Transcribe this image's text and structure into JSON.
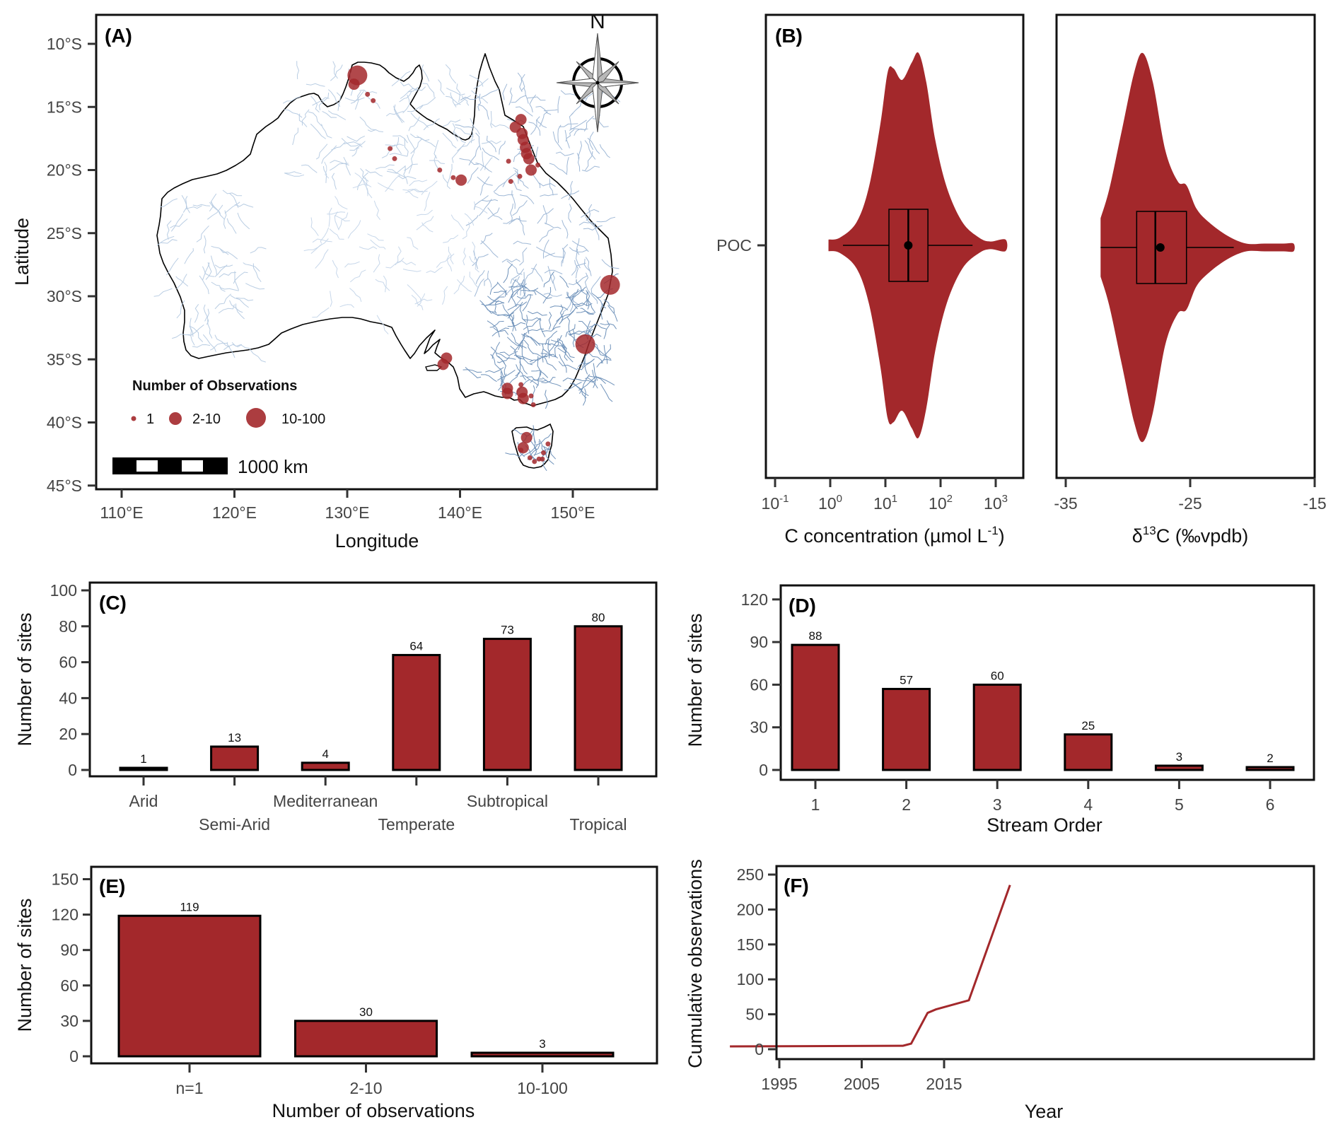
{
  "colors": {
    "bar_fill": "#a3282b",
    "point_fill": "#a3282b",
    "river": "#9fb8d6",
    "coast": "#000000",
    "line": "#a3282b"
  },
  "chart_data": [
    {
      "id": "A",
      "type": "scatter",
      "panel_label": "(A)",
      "title": "",
      "xlabel": "Longitude",
      "ylabel": "Latitude",
      "x_ticks": [
        "110°E",
        "120°E",
        "130°E",
        "140°E",
        "150°E"
      ],
      "x_tick_values": [
        110,
        120,
        130,
        140,
        150
      ],
      "y_ticks": [
        "10°S",
        "15°S",
        "20°S",
        "25°S",
        "30°S",
        "35°S",
        "40°S",
        "45°S"
      ],
      "y_tick_values": [
        -10,
        -15,
        -20,
        -25,
        -30,
        -35,
        -40,
        -45
      ],
      "xlim": [
        108,
        156
      ],
      "ylim": [
        -46,
        -8
      ],
      "north_arrow_label": "N",
      "scale_bar_label": "1000 km",
      "legend": {
        "title": "Number of Observations",
        "entries": [
          {
            "label": "1",
            "size_class": "small"
          },
          {
            "label": "2-10",
            "size_class": "medium"
          },
          {
            "label": "10-100",
            "size_class": "large"
          }
        ],
        "placement": "bottom-left"
      },
      "points": [
        {
          "lon": 130.9,
          "lat": -12.5,
          "size_class": "large"
        },
        {
          "lon": 130.6,
          "lat": -13.2,
          "size_class": "medium"
        },
        {
          "lon": 131.8,
          "lat": -14.0,
          "size_class": "small"
        },
        {
          "lon": 132.3,
          "lat": -14.5,
          "size_class": "small"
        },
        {
          "lon": 133.8,
          "lat": -18.3,
          "size_class": "small"
        },
        {
          "lon": 134.2,
          "lat": -19.1,
          "size_class": "small"
        },
        {
          "lon": 138.2,
          "lat": -20.0,
          "size_class": "small"
        },
        {
          "lon": 139.4,
          "lat": -20.6,
          "size_class": "small"
        },
        {
          "lon": 140.1,
          "lat": -20.8,
          "size_class": "medium"
        },
        {
          "lon": 145.4,
          "lat": -16.0,
          "size_class": "medium"
        },
        {
          "lon": 144.9,
          "lat": -16.6,
          "size_class": "medium"
        },
        {
          "lon": 145.5,
          "lat": -17.1,
          "size_class": "medium"
        },
        {
          "lon": 145.6,
          "lat": -17.6,
          "size_class": "medium"
        },
        {
          "lon": 145.8,
          "lat": -18.2,
          "size_class": "medium"
        },
        {
          "lon": 145.9,
          "lat": -18.7,
          "size_class": "medium"
        },
        {
          "lon": 146.1,
          "lat": -19.1,
          "size_class": "medium"
        },
        {
          "lon": 146.3,
          "lat": -20.0,
          "size_class": "medium"
        },
        {
          "lon": 144.3,
          "lat": -19.3,
          "size_class": "small"
        },
        {
          "lon": 144.5,
          "lat": -20.9,
          "size_class": "small"
        },
        {
          "lon": 145.3,
          "lat": -20.5,
          "size_class": "small"
        },
        {
          "lon": 146.9,
          "lat": -19.6,
          "size_class": "small"
        },
        {
          "lon": 153.3,
          "lat": -29.1,
          "size_class": "large"
        },
        {
          "lon": 151.1,
          "lat": -33.8,
          "size_class": "large"
        },
        {
          "lon": 138.8,
          "lat": -34.9,
          "size_class": "medium"
        },
        {
          "lon": 138.5,
          "lat": -35.4,
          "size_class": "medium"
        },
        {
          "lon": 144.2,
          "lat": -37.3,
          "size_class": "medium"
        },
        {
          "lon": 144.2,
          "lat": -37.7,
          "size_class": "medium"
        },
        {
          "lon": 145.4,
          "lat": -37.0,
          "size_class": "small"
        },
        {
          "lon": 145.5,
          "lat": -37.6,
          "size_class": "medium"
        },
        {
          "lon": 145.6,
          "lat": -38.1,
          "size_class": "medium"
        },
        {
          "lon": 146.3,
          "lat": -37.9,
          "size_class": "small"
        },
        {
          "lon": 146.5,
          "lat": -38.6,
          "size_class": "small"
        },
        {
          "lon": 145.9,
          "lat": -41.2,
          "size_class": "medium"
        },
        {
          "lon": 145.6,
          "lat": -42.0,
          "size_class": "medium"
        },
        {
          "lon": 145.4,
          "lat": -42.2,
          "size_class": "small"
        },
        {
          "lon": 146.2,
          "lat": -42.8,
          "size_class": "small"
        },
        {
          "lon": 147.0,
          "lat": -42.9,
          "size_class": "small"
        },
        {
          "lon": 146.6,
          "lat": -43.1,
          "size_class": "small"
        },
        {
          "lon": 147.3,
          "lat": -42.9,
          "size_class": "small"
        },
        {
          "lon": 147.8,
          "lat": -41.7,
          "size_class": "small"
        },
        {
          "lon": 147.4,
          "lat": -42.4,
          "size_class": "small"
        }
      ]
    },
    {
      "id": "B1",
      "type": "violin",
      "panel_label": "(B)",
      "category_label": "POC",
      "xlabel": "C concentration (µmol L-1)",
      "xlabel_parts": {
        "main": "C concentration (µmol L",
        "sup": "-1",
        "tail": ")"
      },
      "x_scale": "log10",
      "x_ticks": [
        {
          "base": "10",
          "exp": "-1",
          "value": 0.1
        },
        {
          "base": "10",
          "exp": "0",
          "value": 1
        },
        {
          "base": "10",
          "exp": "1",
          "value": 10
        },
        {
          "base": "10",
          "exp": "2",
          "value": 100
        },
        {
          "base": "10",
          "exp": "3",
          "value": 1000
        }
      ],
      "xlim": [
        0.066,
        3000
      ],
      "range": [
        0.93,
        1500
      ],
      "whisker_min": 1.7,
      "q1": 11.6,
      "median": 26,
      "mean": 26,
      "q3": 59,
      "whisker_max": 380,
      "density_profile": [
        [
          0.93,
          0.03
        ],
        [
          1.5,
          0.04
        ],
        [
          3,
          0.12
        ],
        [
          5,
          0.3
        ],
        [
          8,
          0.62
        ],
        [
          11,
          0.9
        ],
        [
          14,
          0.92
        ],
        [
          20,
          0.86
        ],
        [
          30,
          0.95
        ],
        [
          40,
          1.0
        ],
        [
          55,
          0.85
        ],
        [
          80,
          0.55
        ],
        [
          130,
          0.3
        ],
        [
          250,
          0.12
        ],
        [
          500,
          0.04
        ],
        [
          800,
          0.02
        ],
        [
          1500,
          0.03
        ]
      ]
    },
    {
      "id": "B2",
      "type": "violin",
      "category_label": "POC",
      "xlabel": "δ13C (‰vpdb)",
      "xlabel_parts": {
        "pre": "δ",
        "sup": "13",
        "main": "C (‰vpdb)"
      },
      "x_ticks": [
        "-35",
        "-25",
        "-15"
      ],
      "x_tick_values": [
        -35,
        -25,
        -15
      ],
      "xlim": [
        -35.8,
        -14.9
      ],
      "range": [
        -32.2,
        -16.7
      ],
      "whisker_min": -32.2,
      "q1": -29.3,
      "median": -27.8,
      "mean": -27.4,
      "q3": -25.3,
      "whisker_max": -21.5,
      "density_profile": [
        [
          -32.2,
          0.15
        ],
        [
          -31.5,
          0.3
        ],
        [
          -30.5,
          0.6
        ],
        [
          -29.5,
          0.9
        ],
        [
          -28.8,
          1.0
        ],
        [
          -28,
          0.85
        ],
        [
          -27,
          0.5
        ],
        [
          -26,
          0.34
        ],
        [
          -25.3,
          0.32
        ],
        [
          -24.5,
          0.2
        ],
        [
          -23.5,
          0.13
        ],
        [
          -22,
          0.06
        ],
        [
          -20.5,
          0.02
        ],
        [
          -19,
          0.015
        ],
        [
          -17.5,
          0.02
        ],
        [
          -16.7,
          0.02
        ]
      ]
    },
    {
      "id": "C",
      "type": "bar",
      "panel_label": "(C)",
      "categories": [
        "Arid",
        "Semi-Arid",
        "Mediterranean",
        "Temperate",
        "Subtropical",
        "Tropical"
      ],
      "values": [
        1,
        13,
        4,
        64,
        73,
        80
      ],
      "data_labels": [
        "1",
        "13",
        "4",
        "64",
        "73",
        "80"
      ],
      "xlabel": "",
      "ylabel": "Number of sites",
      "y_ticks": [
        "0",
        "20",
        "40",
        "60",
        "80",
        "100"
      ],
      "y_tick_values": [
        0,
        20,
        40,
        60,
        80,
        100
      ],
      "ylim": [
        -4,
        104
      ]
    },
    {
      "id": "D",
      "type": "bar",
      "panel_label": "(D)",
      "categories": [
        "1",
        "2",
        "3",
        "4",
        "5",
        "6"
      ],
      "values": [
        88,
        57,
        60,
        25,
        3,
        2
      ],
      "data_labels": [
        "88",
        "57",
        "60",
        "25",
        "3",
        "2"
      ],
      "xlabel": "Stream Order",
      "ylabel": "Number of sites",
      "y_ticks": [
        "0",
        "30",
        "60",
        "90",
        "120"
      ],
      "y_tick_values": [
        0,
        30,
        60,
        90,
        120
      ],
      "ylim": [
        -4.5,
        124.5
      ]
    },
    {
      "id": "E",
      "type": "bar",
      "panel_label": "(E)",
      "categories": [
        "n=1",
        "2-10",
        "10-100"
      ],
      "values": [
        119,
        30,
        3
      ],
      "data_labels": [
        "119",
        "30",
        "3"
      ],
      "xlabel": "Number of observations",
      "ylabel": "Number of sites",
      "y_ticks": [
        "0",
        "30",
        "60",
        "90",
        "120",
        "150"
      ],
      "y_tick_values": [
        0,
        30,
        60,
        90,
        120,
        150
      ],
      "ylim": [
        -6,
        156
      ]
    },
    {
      "id": "F",
      "type": "line",
      "panel_label": "(F)",
      "x": [
        1989,
        2010,
        2011,
        2013,
        2014,
        2018,
        2023
      ],
      "y": [
        4,
        5,
        8,
        52,
        57,
        70,
        235
      ],
      "xlabel": "Year",
      "ylabel": "Cumulative observations",
      "x_ticks": [
        "1995",
        "2005",
        "2015"
      ],
      "x_tick_values": [
        1995,
        2005,
        2015
      ],
      "y_ticks": [
        "0",
        "50",
        "100",
        "150",
        "200",
        "250"
      ],
      "y_tick_values": [
        0,
        50,
        100,
        150,
        200,
        250
      ],
      "xlim": [
        1987.1,
        2025.2
      ],
      "ylim": [
        -10,
        257
      ]
    }
  ]
}
